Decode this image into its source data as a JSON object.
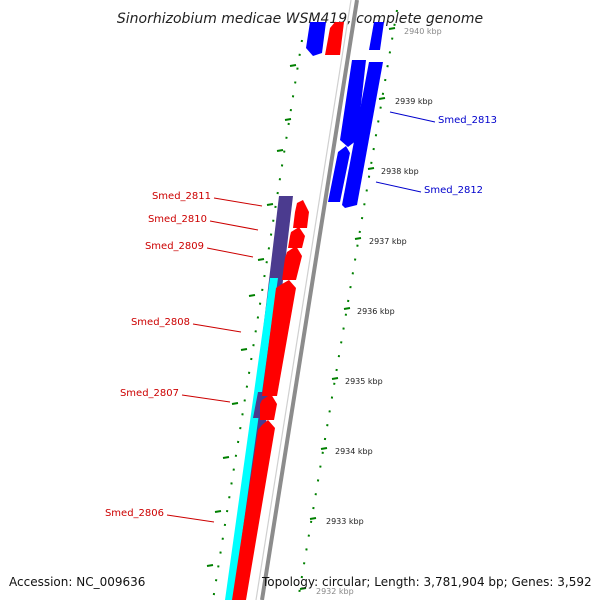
{
  "title": "Sinorhizobium medicae WSM419, complete genome",
  "accession_text": "Accession: NC_009636",
  "topology_text": "Topology: circular; Length: 3,781,904 bp; Genes: 3,592",
  "colors": {
    "forward_cds": "#ff0000",
    "reverse_cds": "#0000ff",
    "rna": "#00ffff",
    "dark_feature": "#4b3b8f",
    "backbone": "#8c8c8c",
    "tick": "#008000",
    "label_forward": "#cc0000",
    "label_reverse": "#0000cc"
  },
  "ticks": [
    {
      "label": "2940 kbp"
    },
    {
      "label": "2939 kbp"
    },
    {
      "label": "2938 kbp"
    },
    {
      "label": "2937 kbp"
    },
    {
      "label": "2936 kbp"
    },
    {
      "label": "2935 kbp"
    },
    {
      "label": "2934 kbp"
    },
    {
      "label": "2933 kbp"
    },
    {
      "label": "2932 kbp"
    }
  ],
  "gene_labels": [
    {
      "name": "Smed_2811",
      "strand": "forward"
    },
    {
      "name": "Smed_2810",
      "strand": "forward"
    },
    {
      "name": "Smed_2809",
      "strand": "forward"
    },
    {
      "name": "Smed_2808",
      "strand": "forward"
    },
    {
      "name": "Smed_2807",
      "strand": "forward"
    },
    {
      "name": "Smed_2806",
      "strand": "forward"
    },
    {
      "name": "Smed_2813",
      "strand": "reverse"
    },
    {
      "name": "Smed_2812",
      "strand": "reverse"
    }
  ]
}
